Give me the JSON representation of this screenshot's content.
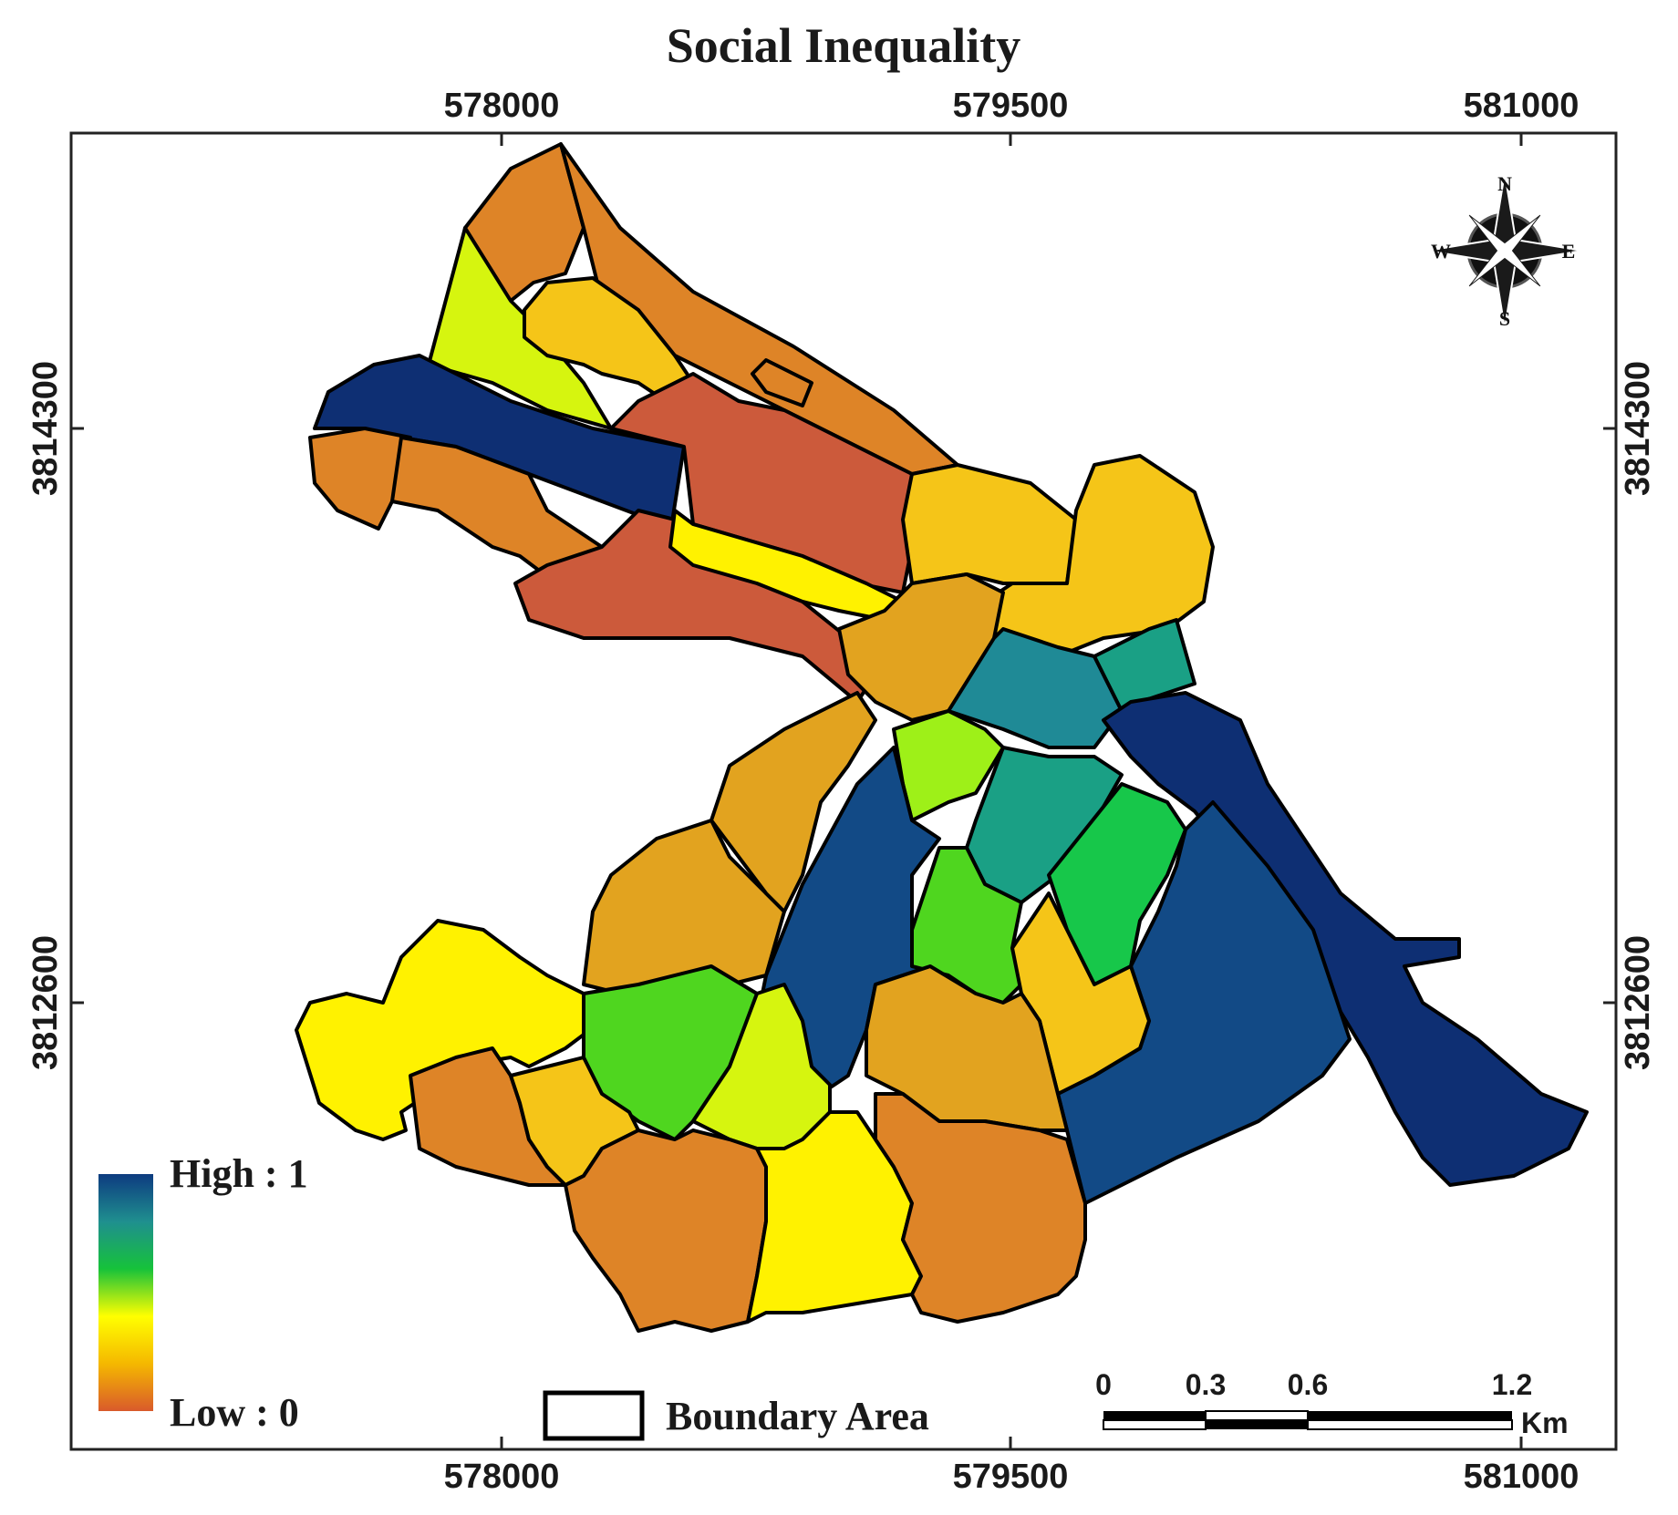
{
  "title": "Social Inequality",
  "axes": {
    "x_ticks": [
      "578000",
      "579500",
      "581000"
    ],
    "y_ticks": [
      "3814300",
      "3812600"
    ]
  },
  "legend": {
    "high_label": "High : 1",
    "low_label": "Low : 0",
    "boundary_label": "Boundary Area",
    "gradient_colors": [
      "#0d3b80",
      "#1f8f8f",
      "#16c23a",
      "#ffff00",
      "#f5b800",
      "#d95a2b"
    ]
  },
  "scale_bar": {
    "labels": [
      "0",
      "0.3",
      "0.6",
      "1.2"
    ],
    "unit": "Km"
  },
  "compass": {
    "n": "N",
    "s": "S",
    "e": "E",
    "w": "W"
  },
  "palette": {
    "darkblue": "#0e2f73",
    "blue": "#124a86",
    "teal": "#1f8a96",
    "teal2": "#1aa085",
    "green": "#17c74a",
    "green2": "#4fd61f",
    "lime": "#9ef018",
    "ylime": "#d6f50f",
    "yellow": "#fff200",
    "gold": "#f5c518",
    "orange": "#e2a31f",
    "dorange": "#de8427",
    "red": "#cc5a3b"
  }
}
